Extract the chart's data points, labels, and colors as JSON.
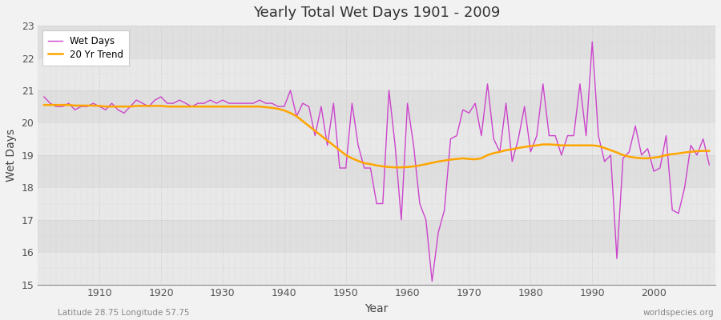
{
  "title": "Yearly Total Wet Days 1901 - 2009",
  "xlabel": "Year",
  "ylabel": "Wet Days",
  "subtitle": "Latitude 28.75 Longitude 57.75",
  "watermark": "worldspecies.org",
  "bg_color": "#f0f0f0",
  "plot_bg_color": "#e8e8e8",
  "band_color": "#d8d8d8",
  "wet_days_color": "#cc44cc",
  "trend_color": "#ffa500",
  "ylim": [
    15,
    23
  ],
  "yticks": [
    15,
    16,
    17,
    18,
    19,
    20,
    21,
    22,
    23
  ],
  "years": [
    1901,
    1902,
    1903,
    1904,
    1905,
    1906,
    1907,
    1908,
    1909,
    1910,
    1911,
    1912,
    1913,
    1914,
    1915,
    1916,
    1917,
    1918,
    1919,
    1920,
    1921,
    1922,
    1923,
    1924,
    1925,
    1926,
    1927,
    1928,
    1929,
    1930,
    1931,
    1932,
    1933,
    1934,
    1935,
    1936,
    1937,
    1938,
    1939,
    1940,
    1941,
    1942,
    1943,
    1944,
    1945,
    1946,
    1947,
    1948,
    1949,
    1950,
    1951,
    1952,
    1953,
    1954,
    1955,
    1956,
    1957,
    1958,
    1959,
    1960,
    1961,
    1962,
    1963,
    1964,
    1965,
    1966,
    1967,
    1968,
    1969,
    1970,
    1971,
    1972,
    1973,
    1974,
    1975,
    1976,
    1977,
    1978,
    1979,
    1980,
    1981,
    1982,
    1983,
    1984,
    1985,
    1986,
    1987,
    1988,
    1989,
    1990,
    1991,
    1992,
    1993,
    1994,
    1995,
    1996,
    1997,
    1998,
    1999,
    2000,
    2001,
    2002,
    2003,
    2004,
    2005,
    2006,
    2007,
    2008,
    2009
  ],
  "wet_days": [
    20.8,
    20.6,
    20.5,
    20.5,
    20.6,
    20.4,
    20.5,
    20.5,
    20.6,
    20.5,
    20.4,
    20.6,
    20.4,
    20.3,
    20.5,
    20.7,
    20.6,
    20.5,
    20.7,
    20.8,
    20.6,
    20.6,
    20.7,
    20.6,
    20.5,
    20.6,
    20.6,
    20.7,
    20.6,
    20.7,
    20.6,
    20.6,
    20.6,
    20.6,
    20.6,
    20.7,
    20.6,
    20.6,
    20.5,
    20.5,
    21.0,
    20.2,
    20.6,
    20.5,
    19.6,
    20.5,
    19.3,
    20.6,
    18.6,
    18.6,
    20.6,
    19.3,
    18.6,
    18.6,
    17.5,
    17.5,
    21.0,
    19.3,
    17.0,
    20.6,
    19.3,
    17.5,
    17.0,
    15.1,
    16.6,
    17.3,
    19.5,
    19.6,
    20.4,
    20.3,
    20.6,
    19.6,
    21.2,
    19.5,
    19.1,
    20.6,
    18.8,
    19.5,
    20.5,
    19.1,
    19.6,
    21.2,
    19.6,
    19.6,
    19.0,
    19.6,
    19.6,
    21.2,
    19.6,
    22.5,
    19.6,
    18.8,
    19.0,
    15.8,
    18.9,
    19.1,
    19.9,
    19.0,
    19.2,
    18.5,
    18.6,
    19.6,
    17.3,
    17.2,
    18.0,
    19.3,
    19.0,
    19.5,
    18.7
  ],
  "trend": [
    20.55,
    20.55,
    20.55,
    20.55,
    20.55,
    20.53,
    20.53,
    20.53,
    20.53,
    20.52,
    20.5,
    20.5,
    20.5,
    20.5,
    20.5,
    20.52,
    20.52,
    20.52,
    20.52,
    20.52,
    20.5,
    20.5,
    20.5,
    20.5,
    20.5,
    20.5,
    20.5,
    20.5,
    20.5,
    20.5,
    20.5,
    20.5,
    20.5,
    20.5,
    20.5,
    20.5,
    20.48,
    20.46,
    20.43,
    20.38,
    20.3,
    20.2,
    20.05,
    19.9,
    19.75,
    19.6,
    19.45,
    19.3,
    19.15,
    19.0,
    18.9,
    18.82,
    18.75,
    18.72,
    18.68,
    18.65,
    18.63,
    18.62,
    18.62,
    18.63,
    18.65,
    18.68,
    18.72,
    18.76,
    18.8,
    18.83,
    18.86,
    18.88,
    18.9,
    18.88,
    18.87,
    18.9,
    19.0,
    19.06,
    19.1,
    19.15,
    19.18,
    19.22,
    19.25,
    19.28,
    19.3,
    19.33,
    19.33,
    19.32,
    19.3,
    19.3,
    19.3,
    19.3,
    19.3,
    19.3,
    19.28,
    19.22,
    19.15,
    19.08,
    19.0,
    18.95,
    18.92,
    18.9,
    18.9,
    18.92,
    18.95,
    19.0,
    19.03,
    19.05,
    19.08,
    19.1,
    19.12,
    19.13,
    19.13
  ]
}
